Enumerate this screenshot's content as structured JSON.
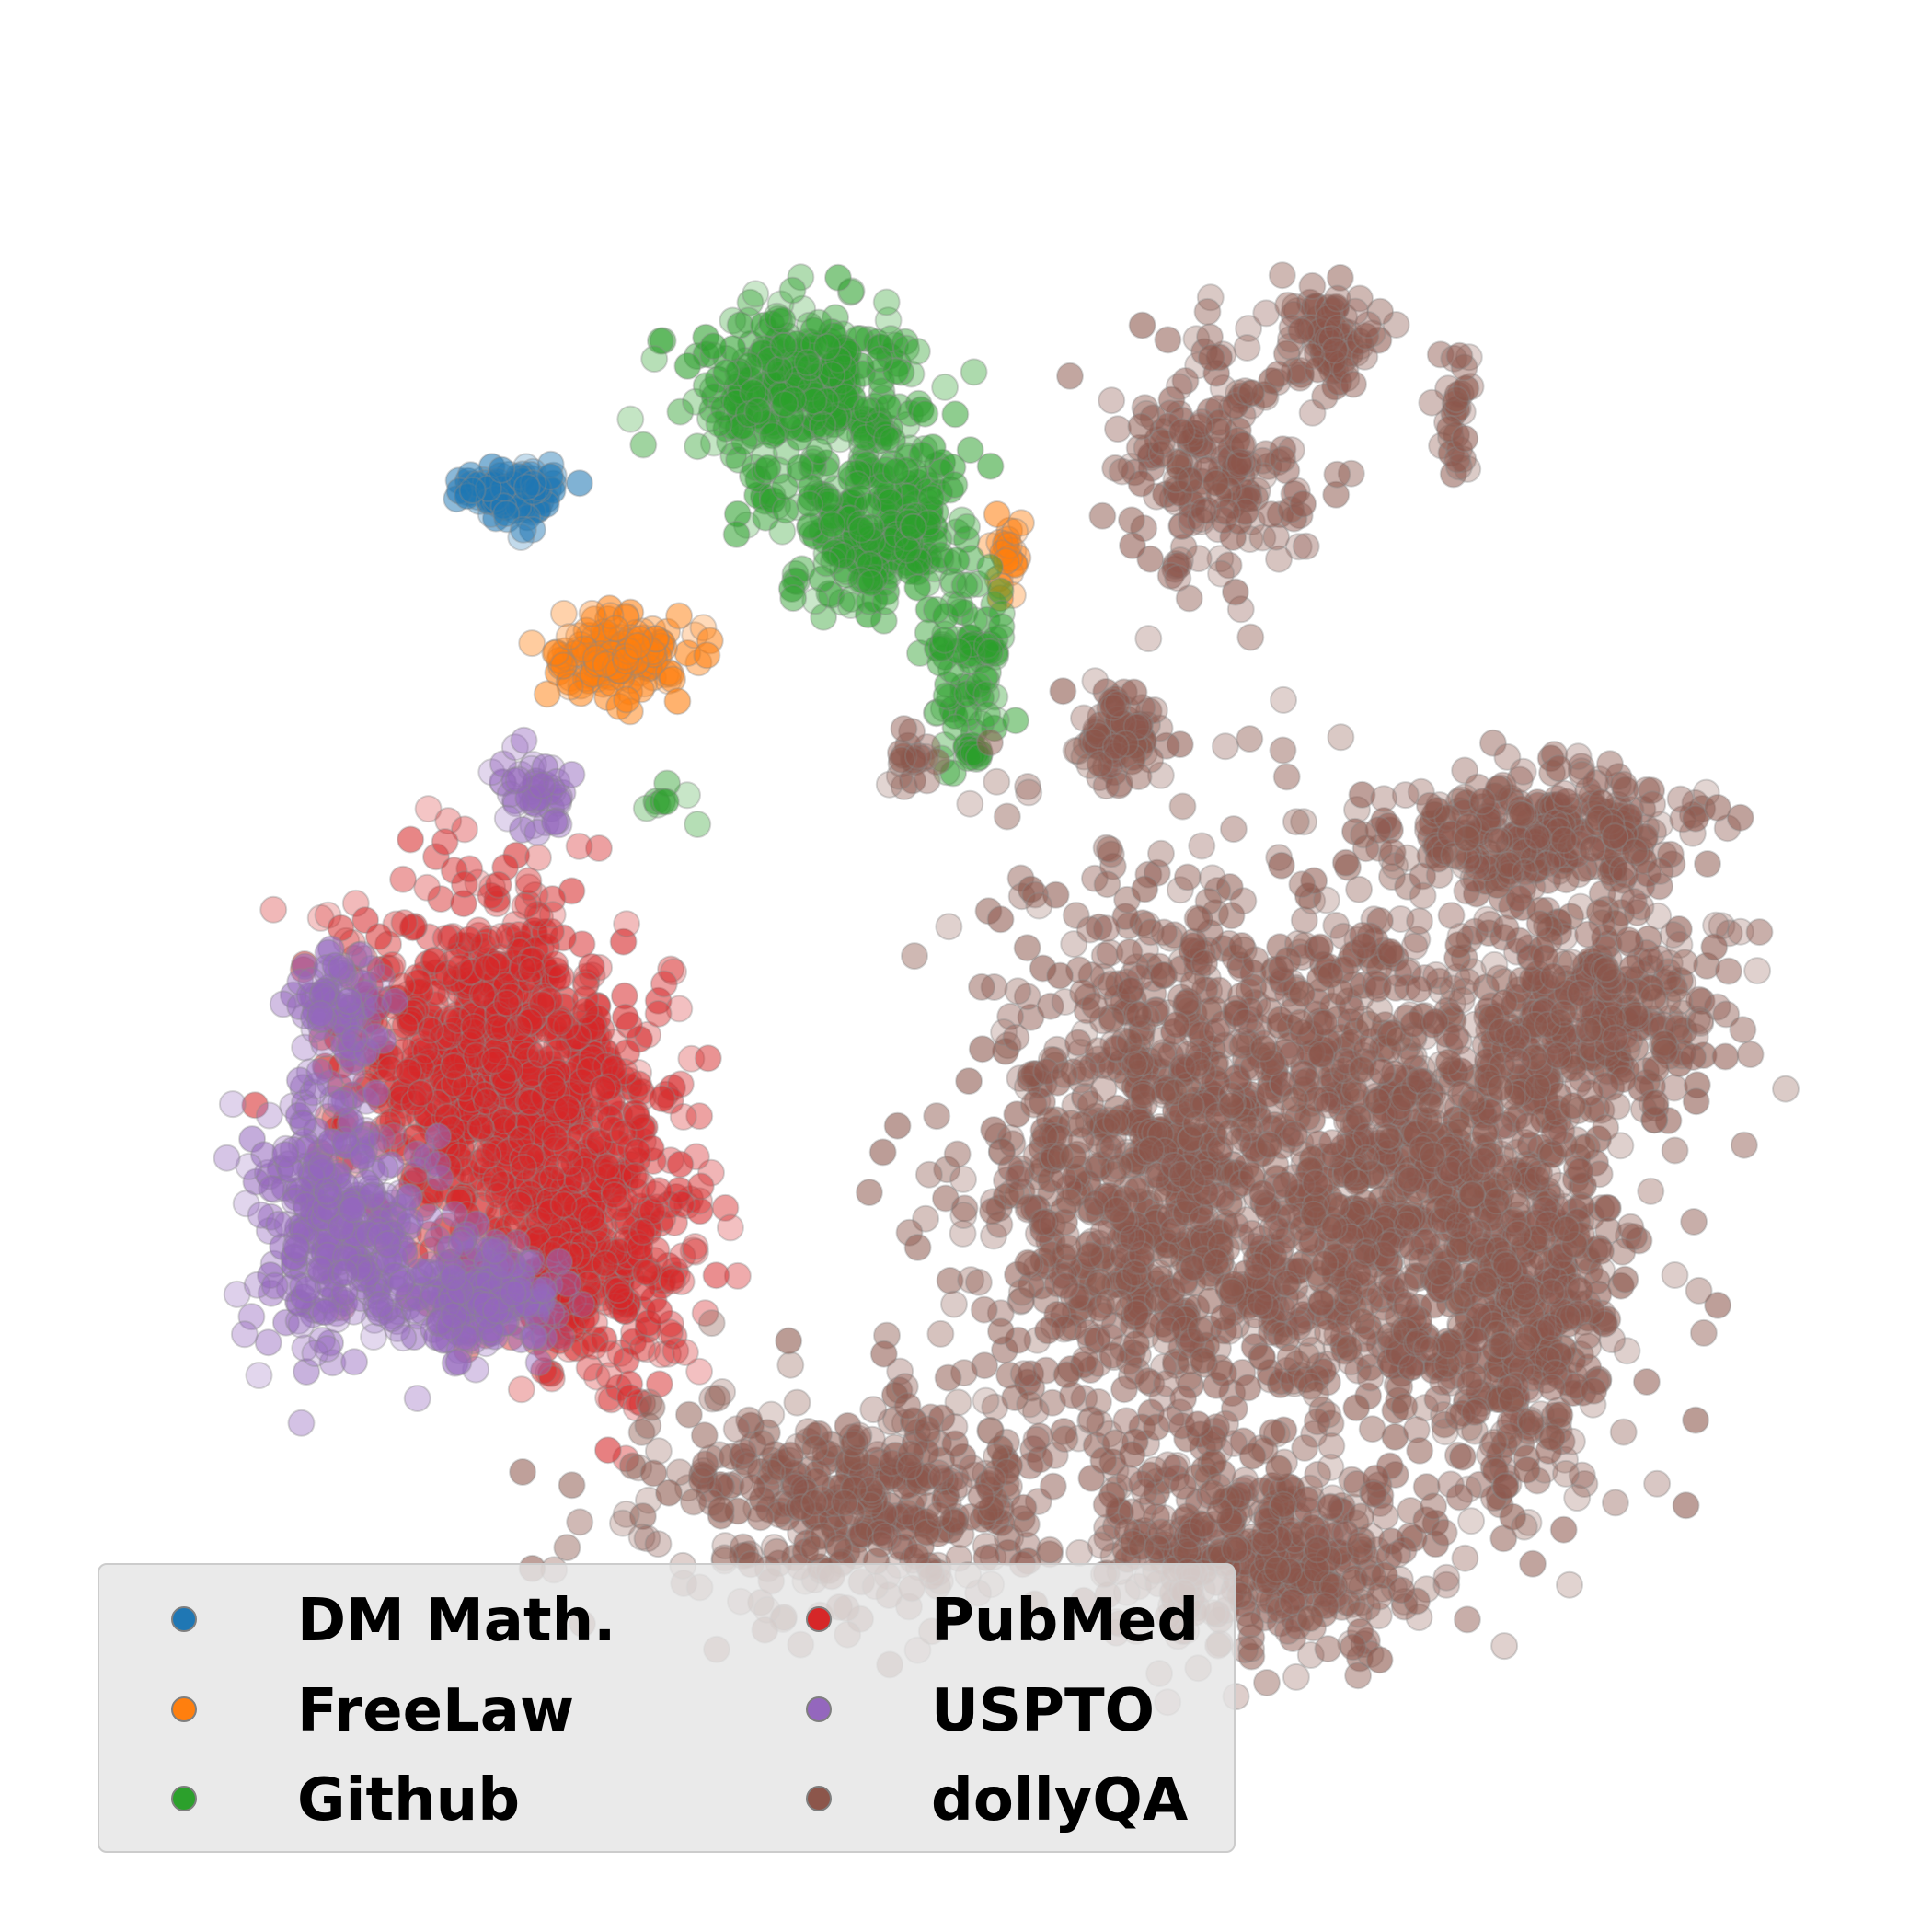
{
  "chart_data": {
    "type": "scatter",
    "title": "",
    "xlabel": "",
    "ylabel": "",
    "axes_visible": false,
    "grid": false,
    "legend_position": "bottom-left",
    "legend_columns": 2,
    "series": [
      {
        "name": "DM Math.",
        "color": "#1f77b4",
        "clusters": [
          {
            "center": [
              0.225,
              0.215
            ],
            "spread": [
              0.025,
              0.015
            ],
            "count": 90
          }
        ]
      },
      {
        "name": "FreeLaw",
        "color": "#ff7f0e",
        "clusters": [
          {
            "center": [
              0.29,
              0.315
            ],
            "spread": [
              0.035,
              0.02
            ],
            "count": 160
          },
          {
            "center": [
              0.527,
              0.255
            ],
            "spread": [
              0.007,
              0.022
            ],
            "count": 25
          }
        ]
      },
      {
        "name": "Github",
        "color": "#2ca02c",
        "clusters": [
          {
            "center": [
              0.4,
              0.15
            ],
            "spread": [
              0.055,
              0.04
            ],
            "count": 320
          },
          {
            "center": [
              0.445,
              0.235
            ],
            "spread": [
              0.05,
              0.045
            ],
            "count": 260
          },
          {
            "center": [
              0.5,
              0.325
            ],
            "spread": [
              0.022,
              0.045
            ],
            "count": 90
          },
          {
            "center": [
              0.505,
              0.37
            ],
            "spread": [
              0.008,
              0.008
            ],
            "count": 12
          },
          {
            "center": [
              0.32,
              0.4
            ],
            "spread": [
              0.012,
              0.01
            ],
            "count": 8
          }
        ]
      },
      {
        "name": "PubMed",
        "color": "#d62728",
        "clusters": [
          {
            "center": [
              0.215,
              0.56
            ],
            "spread": [
              0.075,
              0.085
            ],
            "count": 900
          },
          {
            "center": [
              0.27,
              0.665
            ],
            "spread": [
              0.055,
              0.07
            ],
            "count": 450
          }
        ]
      },
      {
        "name": "USPTO",
        "color": "#9467bd",
        "clusters": [
          {
            "center": [
              0.24,
              0.395
            ],
            "spread": [
              0.018,
              0.02
            ],
            "count": 45
          },
          {
            "center": [
              0.12,
              0.65
            ],
            "spread": [
              0.04,
              0.07
            ],
            "count": 330
          },
          {
            "center": [
              0.205,
              0.7
            ],
            "spread": [
              0.04,
              0.03
            ],
            "count": 200
          },
          {
            "center": [
              0.12,
              0.52
            ],
            "spread": [
              0.025,
              0.025
            ],
            "count": 70
          }
        ]
      },
      {
        "name": "dollyQA",
        "color": "#8c564b",
        "clusters": [
          {
            "center": [
              0.61,
              0.63
            ],
            "spread": [
              0.09,
              0.15
            ],
            "count": 950
          },
          {
            "center": [
              0.76,
              0.62
            ],
            "spread": [
              0.11,
              0.14
            ],
            "count": 1100
          },
          {
            "center": [
              0.85,
              0.42
            ],
            "spread": [
              0.07,
              0.03
            ],
            "count": 300
          },
          {
            "center": [
              0.88,
              0.53
            ],
            "spread": [
              0.07,
              0.05
            ],
            "count": 300
          },
          {
            "center": [
              0.84,
              0.71
            ],
            "spread": [
              0.05,
              0.1
            ],
            "count": 350
          },
          {
            "center": [
              0.59,
              0.36
            ],
            "spread": [
              0.017,
              0.027
            ],
            "count": 80
          },
          {
            "center": [
              0.65,
              0.2
            ],
            "spread": [
              0.045,
              0.06
            ],
            "count": 200
          },
          {
            "center": [
              0.72,
              0.12
            ],
            "spread": [
              0.022,
              0.03
            ],
            "count": 90
          },
          {
            "center": [
              0.795,
              0.165
            ],
            "spread": [
              0.01,
              0.035
            ],
            "count": 30
          },
          {
            "center": [
              0.47,
              0.375
            ],
            "spread": [
              0.01,
              0.015
            ],
            "count": 20
          },
          {
            "center": [
              0.43,
              0.82
            ],
            "spread": [
              0.11,
              0.055
            ],
            "count": 420
          },
          {
            "center": [
              0.68,
              0.86
            ],
            "spread": [
              0.08,
              0.05
            ],
            "count": 400
          }
        ]
      }
    ]
  }
}
